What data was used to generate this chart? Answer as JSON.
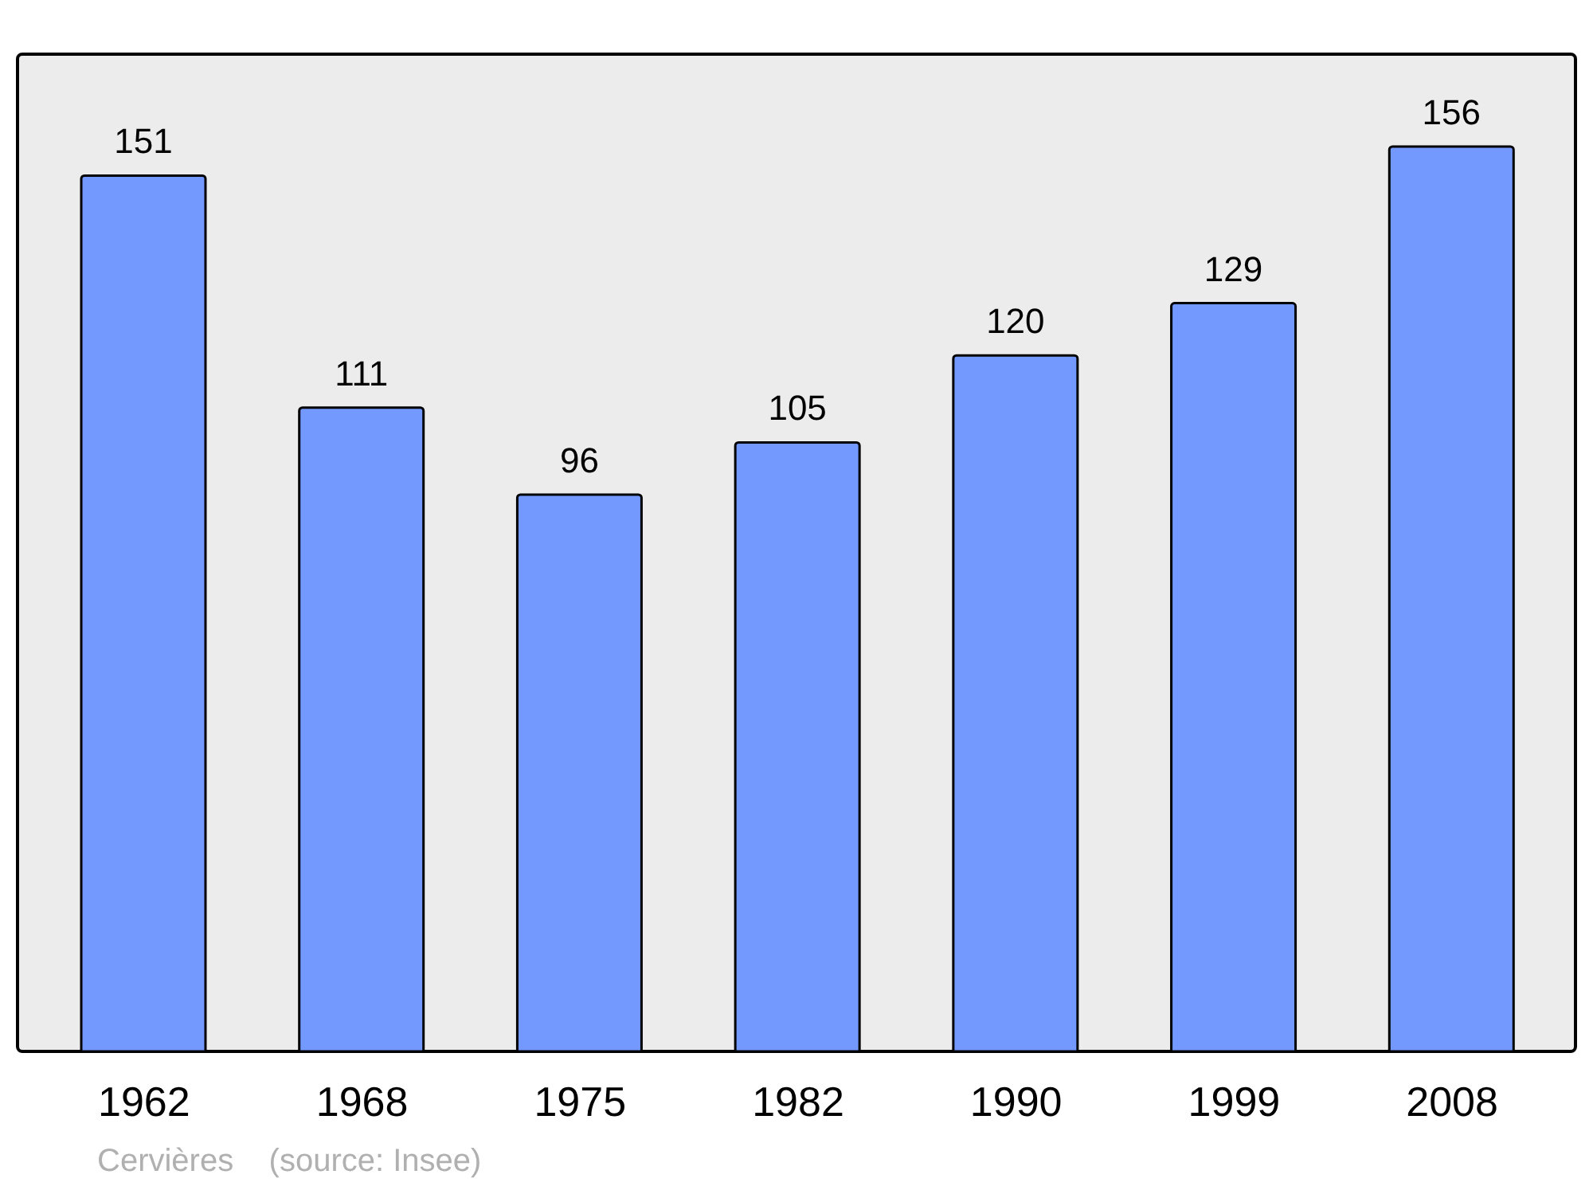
{
  "chart_data": {
    "type": "bar",
    "categories": [
      "1962",
      "1968",
      "1975",
      "1982",
      "1990",
      "1999",
      "2008"
    ],
    "values": [
      151,
      111,
      96,
      105,
      120,
      129,
      156
    ],
    "color": "#7399ff",
    "data_labels": true,
    "annotations": [
      "Cervières    (source: Insee)"
    ]
  }
}
